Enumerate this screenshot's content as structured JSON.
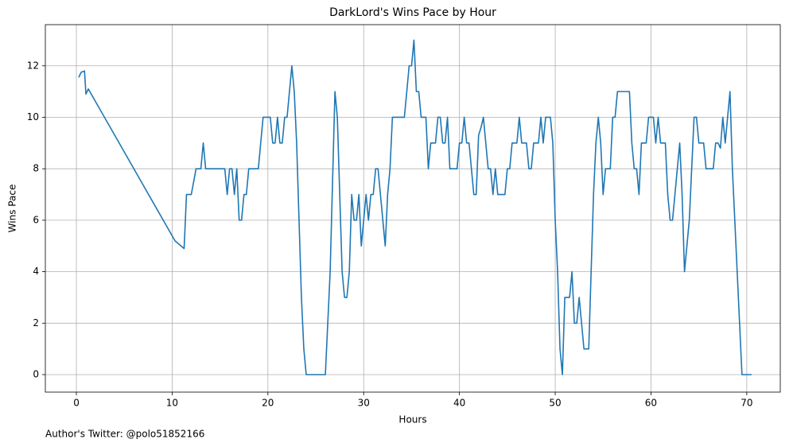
{
  "chart_data": {
    "type": "line",
    "title": "DarkLord's Wins Pace by Hour",
    "x_label": "Hours",
    "y_label": "Wins Pace",
    "footnote": "Author's Twitter: @polo51852166",
    "color": "#1f77b4",
    "grid": true,
    "xlim": [
      -3.24,
      73.5
    ],
    "ylim": [
      -0.68,
      13.6
    ],
    "xticks": [
      0,
      10,
      20,
      30,
      40,
      50,
      60,
      70
    ],
    "yticks": [
      0,
      2,
      4,
      6,
      8,
      10,
      12
    ],
    "x": [
      0.25,
      0.5,
      0.85,
      1.0,
      1.25,
      10.3,
      11.25,
      11.5,
      12,
      12.5,
      13,
      13.25,
      13.5,
      15.5,
      15.75,
      16,
      16.25,
      16.5,
      16.75,
      17,
      17.25,
      17.5,
      17.75,
      18,
      19,
      19.25,
      19.5,
      20.25,
      20.5,
      20.75,
      21,
      21.25,
      21.5,
      21.75,
      22,
      22.5,
      22.75,
      23,
      23.25,
      23.5,
      23.75,
      24,
      26,
      26.25,
      26.5,
      27,
      27.25,
      27.5,
      27.75,
      28,
      28.25,
      28.5,
      28.75,
      29,
      29.25,
      29.5,
      29.75,
      30,
      30.25,
      30.5,
      30.75,
      31,
      31.25,
      31.5,
      31.75,
      32,
      32.25,
      32.5,
      32.75,
      33,
      34.25,
      34.5,
      34.75,
      35,
      35.25,
      35.5,
      35.75,
      36,
      36.5,
      36.75,
      37,
      37.5,
      37.75,
      38,
      38.25,
      38.5,
      38.75,
      39,
      39.75,
      40,
      40.25,
      40.5,
      40.75,
      41,
      41.25,
      41.5,
      41.75,
      42,
      42.25,
      42.5,
      42.75,
      43,
      43.25,
      43.5,
      43.75,
      44,
      44.75,
      45,
      45.25,
      45.5,
      46,
      46.25,
      46.5,
      47,
      47.25,
      47.5,
      47.75,
      48.25,
      48.5,
      48.75,
      49,
      49.5,
      49.75,
      50,
      50.25,
      50.5,
      50.75,
      51,
      51.5,
      51.75,
      52,
      52.25,
      52.5,
      52.75,
      53,
      53.5,
      53.75,
      54,
      54.25,
      54.5,
      54.75,
      55,
      55.25,
      55.75,
      56,
      56.25,
      56.5,
      57.75,
      58,
      58.25,
      58.5,
      58.75,
      59,
      59.5,
      59.75,
      60.25,
      60.5,
      60.75,
      61,
      61.5,
      61.75,
      62,
      62.25,
      62.5,
      63,
      63.25,
      63.5,
      64,
      64.25,
      64.5,
      64.75,
      65,
      65.5,
      65.75,
      66.5,
      66.75,
      67,
      67.25,
      67.5,
      67.75,
      68,
      68.25,
      68.5,
      69,
      69.5,
      70.5
    ],
    "values": [
      11.55,
      11.75,
      11.8,
      10.9,
      11.1,
      5.2,
      4.9,
      7,
      7,
      8,
      8,
      9,
      8,
      8,
      7,
      8,
      8,
      7,
      8,
      6,
      6,
      7,
      7,
      8,
      8,
      9,
      10,
      10,
      9,
      9,
      10,
      9,
      9,
      10,
      10,
      12,
      11,
      9,
      6,
      3,
      1,
      0,
      0,
      2,
      4,
      11,
      10,
      7,
      4,
      3,
      3,
      4,
      7,
      6,
      6,
      7,
      5,
      6,
      7,
      6,
      7,
      7,
      8,
      8,
      7,
      6,
      5,
      7,
      8,
      10,
      10,
      11,
      12,
      12,
      13,
      11,
      11,
      10,
      10,
      8,
      9,
      9,
      10,
      10,
      9,
      9,
      10,
      8,
      8,
      9,
      9,
      10,
      9,
      9,
      8,
      7,
      7,
      9.3,
      9.6,
      10,
      9,
      8,
      8,
      7,
      8,
      7,
      7,
      8,
      8,
      9,
      9,
      10,
      9,
      9,
      8,
      8,
      9,
      9,
      10,
      9,
      10,
      10,
      9,
      6,
      4,
      1,
      0,
      3,
      3,
      4,
      2,
      2,
      3,
      2,
      1,
      1,
      4,
      7,
      9,
      10,
      9,
      7,
      8,
      8,
      10,
      10,
      11,
      11,
      9,
      8,
      8,
      7,
      9,
      9,
      10,
      10,
      9,
      10,
      9,
      9,
      7,
      6,
      6,
      7,
      9,
      7,
      4,
      6,
      8,
      10,
      10,
      9,
      9,
      8,
      8,
      9,
      9,
      8.8,
      10,
      9,
      10,
      11,
      8,
      4,
      0,
      0
    ]
  }
}
